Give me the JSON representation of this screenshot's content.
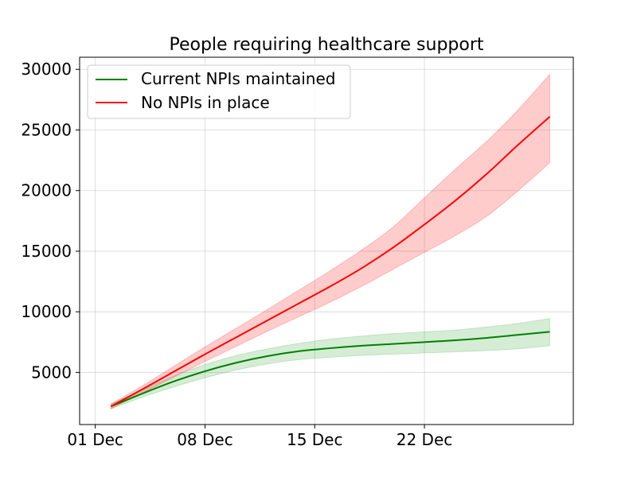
{
  "chart_data": {
    "type": "line",
    "title": "People requiring healthcare support",
    "xlabel": "",
    "ylabel": "",
    "x_ticks": [
      {
        "day": 0,
        "label": "01 Dec"
      },
      {
        "day": 7,
        "label": "08 Dec"
      },
      {
        "day": 14,
        "label": "15 Dec"
      },
      {
        "day": 21,
        "label": "22 Dec"
      }
    ],
    "y_ticks": [
      5000,
      10000,
      15000,
      20000,
      25000,
      30000
    ],
    "xlim": [
      -1,
      30.5
    ],
    "ylim": [
      700,
      31000
    ],
    "grid": true,
    "legend_position": "top-left",
    "x": [
      1,
      3,
      5,
      7,
      9,
      11,
      13,
      15,
      17,
      19,
      21,
      23,
      25,
      27,
      29
    ],
    "series": [
      {
        "name": "Current NPIs maintained",
        "color": "#008000",
        "band_color": "#2ca02c",
        "values": [
          2200,
          3250,
          4250,
          5100,
          5800,
          6350,
          6750,
          7000,
          7200,
          7350,
          7500,
          7650,
          7850,
          8100,
          8350
        ],
        "lower": [
          2000,
          2950,
          3800,
          4550,
          5200,
          5700,
          6050,
          6250,
          6400,
          6500,
          6600,
          6700,
          6800,
          6950,
          7200
        ],
        "upper": [
          2400,
          3550,
          4700,
          5650,
          6400,
          6950,
          7400,
          7750,
          8000,
          8200,
          8350,
          8500,
          8750,
          9050,
          9450
        ]
      },
      {
        "name": "No NPIs in place",
        "color": "#ff0000",
        "band_color": "#ff0000",
        "values": [
          2200,
          3600,
          5050,
          6500,
          7900,
          9300,
          10700,
          12100,
          13600,
          15300,
          17200,
          19200,
          21400,
          23800,
          26100
        ],
        "lower": [
          2000,
          3300,
          4600,
          5900,
          7150,
          8400,
          9600,
          10800,
          12100,
          13500,
          14900,
          16300,
          17900,
          20000,
          22300
        ],
        "upper": [
          2400,
          3900,
          5500,
          7100,
          8650,
          10200,
          11800,
          13400,
          15100,
          17000,
          19400,
          21800,
          24100,
          26700,
          29600
        ]
      }
    ]
  }
}
